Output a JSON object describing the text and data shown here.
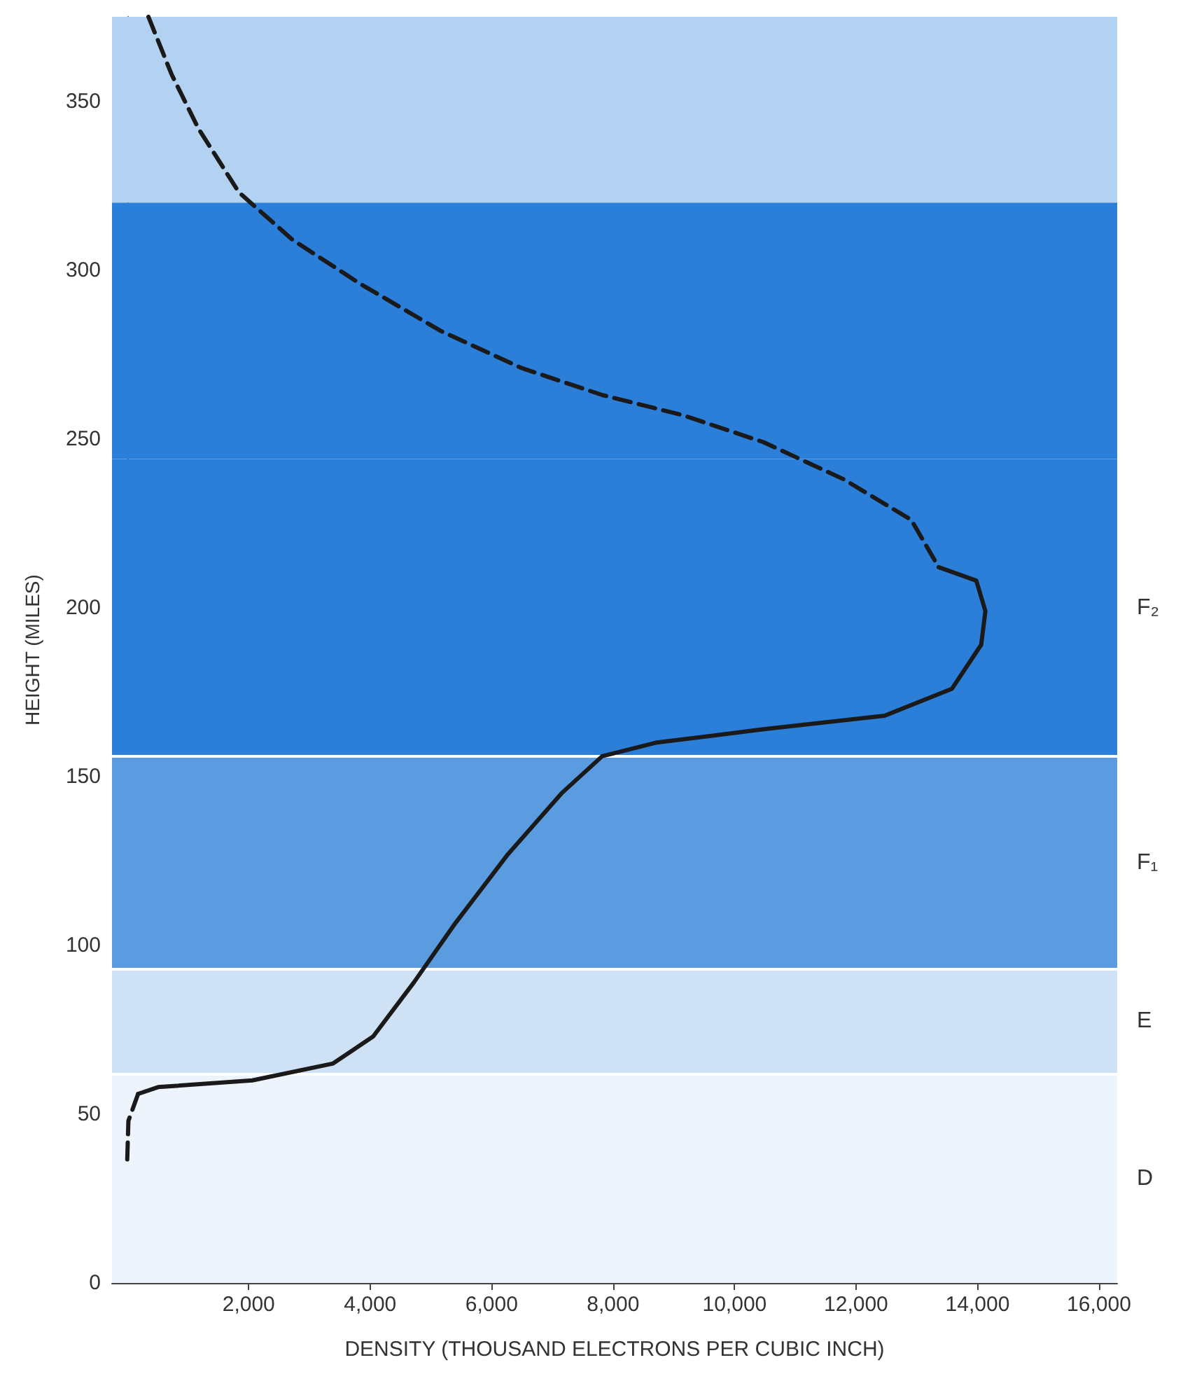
{
  "chart_data": {
    "type": "line",
    "xlabel": "DENSITY (THOUSAND ELECTRONS PER CUBIC INCH)",
    "ylabel": "HEIGHT (MILES)",
    "xlim": [
      -250,
      16300
    ],
    "ylim": [
      0,
      375
    ],
    "xticks": [
      {
        "value": 2000,
        "label": "2,000"
      },
      {
        "value": 4000,
        "label": "4,000"
      },
      {
        "value": 6000,
        "label": "6,000"
      },
      {
        "value": 8000,
        "label": "8,000"
      },
      {
        "value": 10000,
        "label": "10,000"
      },
      {
        "value": 12000,
        "label": "12,000"
      },
      {
        "value": 14000,
        "label": "14,000"
      },
      {
        "value": 16000,
        "label": "16,000"
      }
    ],
    "yticks": [
      0,
      50,
      100,
      150,
      200,
      250,
      300,
      350
    ],
    "grid": false,
    "marker": "none",
    "series": [
      {
        "color": "#1a1a1a",
        "line_style": "dashed",
        "x": [
          350,
          730,
          1170,
          1840,
          2720,
          3830,
          5160,
          6490,
          7820,
          9150,
          10480,
          11800,
          12910,
          13360
        ],
        "values": [
          375,
          358,
          342,
          323,
          309,
          296,
          282,
          271,
          263,
          257,
          249,
          238,
          226,
          212
        ]
      },
      {
        "color": "#1a1a1a",
        "line_style": "solid",
        "x": [
          13360,
          13980,
          14130,
          14060,
          13580,
          12470,
          10480,
          8700,
          7820,
          7150,
          6270,
          5380,
          4720,
          4050,
          3390,
          2060,
          510,
          180
        ],
        "values": [
          212,
          208,
          199,
          189,
          176,
          168,
          164,
          160,
          156,
          145,
          127,
          106,
          89,
          73,
          65,
          60,
          58,
          56
        ]
      },
      {
        "color": "#1a1a1a",
        "line_style": "dashed",
        "x": [
          180,
          20,
          0
        ],
        "values": [
          56,
          48,
          36
        ]
      }
    ],
    "ref_lines": [
      {
        "axis": "y",
        "value": 156,
        "color": "#ffffff"
      },
      {
        "axis": "y",
        "value": 93,
        "color": "#ffffff"
      },
      {
        "axis": "y",
        "value": 62,
        "color": "#ffffff"
      }
    ],
    "bands": [
      {
        "axis": "y",
        "from": 0,
        "to": 62,
        "color": "#eef4fb",
        "label": "D"
      },
      {
        "axis": "y",
        "from": 62,
        "to": 93,
        "color": "#cfe1f4",
        "label": "E"
      },
      {
        "axis": "y",
        "from": 93,
        "to": 156,
        "color": "#5b9be0",
        "label": "F₁"
      },
      {
        "axis": "y",
        "from": 156,
        "to": 244,
        "color": "#2b7fd9",
        "label": "F₂"
      },
      {
        "axis": "y",
        "from": 244,
        "to": 320,
        "color": "#2b7fd9"
      },
      {
        "axis": "y",
        "from": 320,
        "to": 375,
        "color": "#b3d1f0"
      }
    ]
  }
}
